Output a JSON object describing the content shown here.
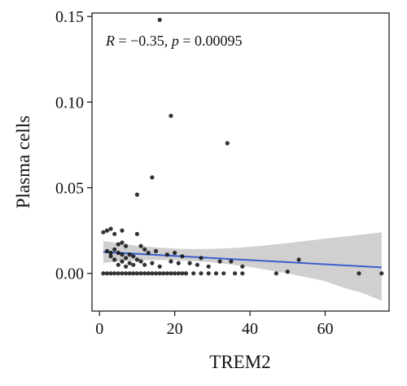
{
  "chart_data": {
    "type": "scatter",
    "xlabel": "TREM2",
    "ylabel": "Plasma cells",
    "annotation": {
      "r_label": "R",
      "r_text": " = −0.35, ",
      "p_label": "p",
      "p_text": " = 0.00095"
    },
    "xlim": [
      -2,
      77
    ],
    "ylim": [
      -0.022,
      0.152
    ],
    "x_ticks": [
      0,
      20,
      40,
      60
    ],
    "x_tick_labels": [
      "0",
      "20",
      "40",
      "60"
    ],
    "y_ticks": [
      0.0,
      0.05,
      0.1,
      0.15
    ],
    "y_tick_labels": [
      "0.00",
      "0.05",
      "0.10",
      "0.15"
    ],
    "grid": false,
    "colors": {
      "point": "#111111",
      "fit_line": "#3a5fcd",
      "ci_band": "#c8c8c8"
    },
    "fit": {
      "x": [
        1,
        75
      ],
      "y": [
        0.0125,
        0.0035
      ]
    },
    "ci_band": {
      "x": [
        1,
        5,
        10,
        15,
        20,
        25,
        30,
        35,
        40,
        45,
        50,
        55,
        60,
        65,
        70,
        75
      ],
      "upper": [
        0.019,
        0.0175,
        0.0162,
        0.0152,
        0.0145,
        0.0142,
        0.0143,
        0.0147,
        0.0155,
        0.0165,
        0.0177,
        0.019,
        0.0203,
        0.0215,
        0.0227,
        0.024
      ],
      "lower": [
        0.006,
        0.007,
        0.0076,
        0.0078,
        0.0077,
        0.0072,
        0.0064,
        0.0052,
        0.0037,
        0.0019,
        0.0,
        -0.0022,
        -0.0045,
        -0.0085,
        -0.0115,
        -0.016
      ]
    },
    "points": [
      [
        16,
        0.148
      ],
      [
        19,
        0.092
      ],
      [
        34,
        0.076
      ],
      [
        14,
        0.056
      ],
      [
        10,
        0.046
      ],
      [
        1,
        0.024
      ],
      [
        2,
        0.025
      ],
      [
        3,
        0.026
      ],
      [
        4,
        0.023
      ],
      [
        6,
        0.025
      ],
      [
        10,
        0.023
      ],
      [
        5,
        0.017
      ],
      [
        6,
        0.018
      ],
      [
        7,
        0.016
      ],
      [
        4,
        0.014
      ],
      [
        2,
        0.013
      ],
      [
        3,
        0.012
      ],
      [
        5,
        0.012
      ],
      [
        6,
        0.011
      ],
      [
        8,
        0.011
      ],
      [
        9,
        0.01
      ],
      [
        3,
        0.01
      ],
      [
        7,
        0.009
      ],
      [
        4,
        0.008
      ],
      [
        6,
        0.007
      ],
      [
        8,
        0.006
      ],
      [
        9,
        0.005
      ],
      [
        5,
        0.005
      ],
      [
        7,
        0.004
      ],
      [
        11,
        0.016
      ],
      [
        12,
        0.014
      ],
      [
        13,
        0.012
      ],
      [
        15,
        0.013
      ],
      [
        10,
        0.008
      ],
      [
        11,
        0.007
      ],
      [
        12,
        0.005
      ],
      [
        14,
        0.006
      ],
      [
        16,
        0.004
      ],
      [
        18,
        0.011
      ],
      [
        20,
        0.012
      ],
      [
        22,
        0.01
      ],
      [
        19,
        0.007
      ],
      [
        21,
        0.006
      ],
      [
        24,
        0.006
      ],
      [
        27,
        0.009
      ],
      [
        26,
        0.005
      ],
      [
        29,
        0.004
      ],
      [
        32,
        0.007
      ],
      [
        35,
        0.007
      ],
      [
        38,
        0.004
      ],
      [
        47,
        0.0
      ],
      [
        50,
        0.001
      ],
      [
        53,
        0.008
      ],
      [
        69,
        0.0
      ],
      [
        75,
        0.0
      ],
      [
        1,
        0.0
      ],
      [
        2,
        0.0
      ],
      [
        3,
        0.0
      ],
      [
        4,
        0.0
      ],
      [
        5,
        0.0
      ],
      [
        6,
        0.0
      ],
      [
        7,
        0.0
      ],
      [
        8,
        0.0
      ],
      [
        9,
        0.0
      ],
      [
        10,
        0.0
      ],
      [
        11,
        0.0
      ],
      [
        12,
        0.0
      ],
      [
        13,
        0.0
      ],
      [
        14,
        0.0
      ],
      [
        15,
        0.0
      ],
      [
        16,
        0.0
      ],
      [
        17,
        0.0
      ],
      [
        18,
        0.0
      ],
      [
        19,
        0.0
      ],
      [
        20,
        0.0
      ],
      [
        21,
        0.0
      ],
      [
        22,
        0.0
      ],
      [
        23,
        0.0
      ],
      [
        25,
        0.0
      ],
      [
        27,
        0.0
      ],
      [
        29,
        0.0
      ],
      [
        31,
        0.0
      ],
      [
        33,
        0.0
      ],
      [
        36,
        0.0
      ],
      [
        38,
        0.0
      ]
    ]
  }
}
